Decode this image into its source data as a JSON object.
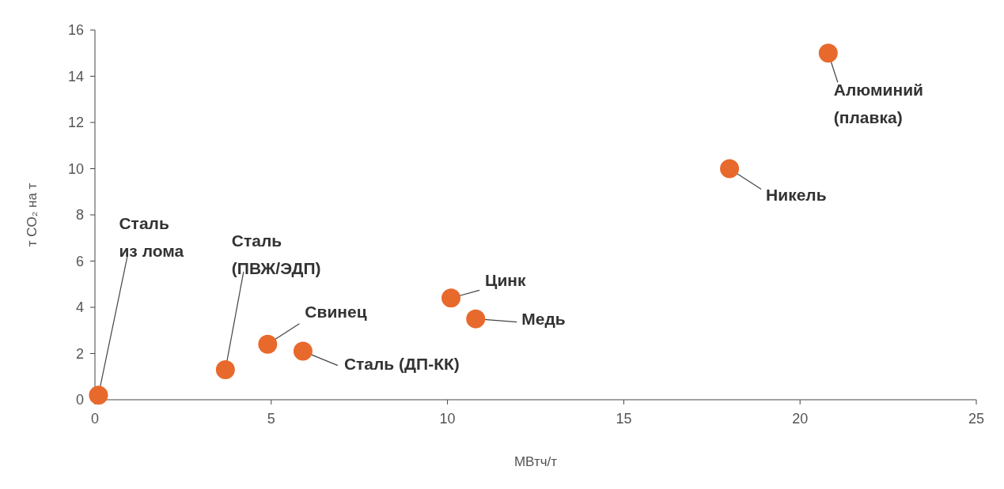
{
  "chart_data": {
    "type": "scatter",
    "xlabel": "МВтч/т",
    "ylabel": "т CO₂ на т",
    "x": [
      0.1,
      3.7,
      4.9,
      5.9,
      10.1,
      10.8,
      18.0,
      20.8
    ],
    "series": [
      {
        "color": "#e8692c",
        "values": [
          0.2,
          1.3,
          2.4,
          2.1,
          4.4,
          3.5,
          10.0,
          15.0
        ]
      }
    ],
    "xlim": [
      0,
      25
    ],
    "xticks": [
      0,
      5,
      10,
      15,
      20,
      25
    ],
    "ylim": [
      0,
      16
    ],
    "yticks": [
      0,
      2,
      4,
      6,
      8,
      10,
      12,
      14,
      16
    ],
    "grid": false,
    "marker": "circle",
    "annotations": [
      {
        "text": "Сталь\nиз лома",
        "x": 0.1,
        "y": 0.2
      },
      {
        "text": "Сталь\n(ПВЖ/ЭДП)",
        "x": 3.7,
        "y": 1.3
      },
      {
        "text": "Свинец",
        "x": 4.9,
        "y": 2.4
      },
      {
        "text": "Сталь (ДП-КК)",
        "x": 5.9,
        "y": 2.1
      },
      {
        "text": "Цинк",
        "x": 10.1,
        "y": 4.4
      },
      {
        "text": "Медь",
        "x": 10.8,
        "y": 3.5
      },
      {
        "text": "Никель",
        "x": 18.0,
        "y": 10.0
      },
      {
        "text": "Алюминий\n(плавка)",
        "x": 20.8,
        "y": 15.0
      }
    ]
  }
}
